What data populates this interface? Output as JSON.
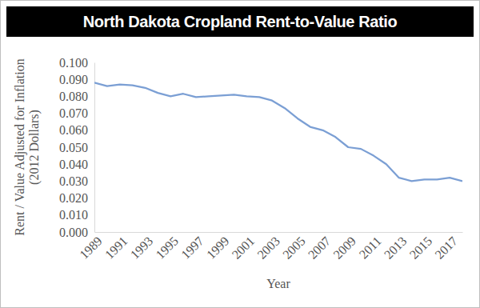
{
  "chart_data": {
    "type": "line",
    "title": "North Dakota Cropland Rent-to-Value Ratio",
    "x_label": "Year",
    "y_label": "Rent / Value Adjusted for Inflation (2012 Dollars)",
    "x": [
      1989,
      1990,
      1991,
      1992,
      1993,
      1994,
      1995,
      1996,
      1997,
      1998,
      1999,
      2000,
      2001,
      2002,
      2003,
      2004,
      2005,
      2006,
      2007,
      2008,
      2009,
      2010,
      2011,
      2012,
      2013,
      2014,
      2015,
      2016,
      2017,
      2018
    ],
    "values": [
      0.088,
      0.086,
      0.087,
      0.0865,
      0.085,
      0.082,
      0.08,
      0.0815,
      0.0795,
      0.08,
      0.0805,
      0.081,
      0.08,
      0.0795,
      0.0775,
      0.073,
      0.067,
      0.062,
      0.06,
      0.056,
      0.05,
      0.049,
      0.045,
      0.04,
      0.032,
      0.03,
      0.031,
      0.031,
      0.032,
      0.03
    ],
    "color": "#7b9fd4",
    "xlim": [
      1989,
      2018
    ],
    "xticks": [
      1989,
      1991,
      1993,
      1995,
      1997,
      1999,
      2001,
      2003,
      2005,
      2007,
      2009,
      2011,
      2013,
      2015,
      2017
    ],
    "ylim": [
      0,
      0.1
    ],
    "yticks": [
      {
        "value": 0,
        "label": "0.000"
      },
      {
        "value": 0.01,
        "label": "0.010"
      },
      {
        "value": 0.02,
        "label": "0.020"
      },
      {
        "value": 0.03,
        "label": "0.030"
      },
      {
        "value": 0.04,
        "label": "0.040"
      },
      {
        "value": 0.05,
        "label": "0.050"
      },
      {
        "value": 0.06,
        "label": "0.060"
      },
      {
        "value": 0.07,
        "label": "0.070"
      },
      {
        "value": 0.08,
        "label": "0.080"
      },
      {
        "value": 0.09,
        "label": "0.090"
      },
      {
        "value": 0.1,
        "label": "0.100"
      }
    ],
    "grid": false
  }
}
